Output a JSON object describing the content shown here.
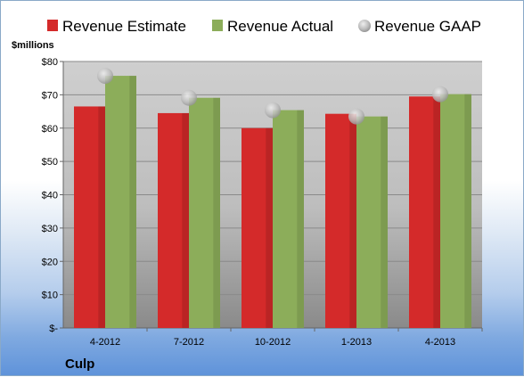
{
  "chart_data": {
    "type": "bar",
    "categories": [
      "4-2012",
      "7-2012",
      "10-2012",
      "1-2013",
      "4-2013"
    ],
    "series": [
      {
        "name": "Revenue Estimate",
        "values": [
          66.5,
          64.5,
          60.0,
          64.3,
          69.5
        ],
        "color": "#d42a2a",
        "kind": "bar"
      },
      {
        "name": "Revenue Actual",
        "values": [
          75.7,
          69.1,
          65.4,
          63.5,
          70.2
        ],
        "color": "#8cad5a",
        "kind": "bar"
      },
      {
        "name": "Revenue GAAP",
        "values": [
          75.7,
          69.1,
          65.4,
          63.5,
          70.2
        ],
        "color": "#b9b9b9",
        "kind": "marker"
      }
    ],
    "ylabel": "$millions",
    "ylim": [
      0,
      80
    ],
    "yticks": [
      0,
      10,
      20,
      30,
      40,
      50,
      60,
      70,
      80
    ],
    "ytick_labels": [
      "$-",
      "$10",
      "$20",
      "$30",
      "$40",
      "$50",
      "$60",
      "$70",
      "$80"
    ],
    "legend": "top",
    "grid": true,
    "company": "Culp"
  }
}
